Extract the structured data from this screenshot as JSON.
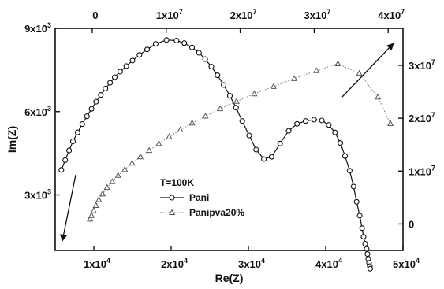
{
  "chart_data": {
    "type": "scatter",
    "annotation": "T=100K",
    "axes": {
      "x_bottom": {
        "label": "Re(Z)",
        "range": [
          5000,
          50000
        ],
        "ticks": [
          10000,
          20000,
          30000,
          40000,
          50000
        ],
        "tick_labels": [
          {
            "base": "1x10",
            "exp": "4"
          },
          {
            "base": "2x10",
            "exp": "4"
          },
          {
            "base": "3x10",
            "exp": "4"
          },
          {
            "base": "4x10",
            "exp": "4"
          },
          {
            "base": "5x10",
            "exp": "4"
          }
        ]
      },
      "y_left": {
        "label": "Im(Z)",
        "range": [
          1000,
          9000
        ],
        "ticks": [
          3000,
          6000,
          9000
        ],
        "tick_labels": [
          {
            "base": "3x10",
            "exp": "3"
          },
          {
            "base": "6x10",
            "exp": "3"
          },
          {
            "base": "9x10",
            "exp": "3"
          }
        ]
      },
      "x_top": {
        "range": [
          -5000000,
          42000000
        ],
        "ticks": [
          0,
          10000000,
          20000000,
          30000000,
          40000000
        ],
        "tick_labels": [
          {
            "base": "0",
            "exp": ""
          },
          {
            "base": "1x10",
            "exp": "7"
          },
          {
            "base": "2x10",
            "exp": "7"
          },
          {
            "base": "3x10",
            "exp": "7"
          },
          {
            "base": "4x10",
            "exp": "7"
          }
        ]
      },
      "y_right": {
        "range": [
          -5000000,
          37000000
        ],
        "ticks": [
          0,
          10000000,
          20000000,
          30000000
        ],
        "tick_labels": [
          {
            "base": "0",
            "exp": ""
          },
          {
            "base": "1x10",
            "exp": "7"
          },
          {
            "base": "2x10",
            "exp": "7"
          },
          {
            "base": "3x10",
            "exp": "7"
          }
        ]
      }
    },
    "series": [
      {
        "name": "Pani",
        "marker": "circle",
        "axes": "bottom-left",
        "x": [
          5800,
          6300,
          6800,
          7300,
          7900,
          8500,
          9100,
          9700,
          10300,
          10900,
          11500,
          12100,
          12700,
          13400,
          14200,
          15000,
          15900,
          16900,
          18000,
          19400,
          20700,
          21700,
          22700,
          23600,
          24400,
          25200,
          26000,
          26800,
          27600,
          28400,
          29200,
          30100,
          31000,
          32000,
          33000,
          34100,
          35200,
          36300,
          37400,
          38500,
          39500,
          40400,
          41200,
          41900,
          42500,
          43100,
          43600,
          44000,
          44400,
          44700,
          44900,
          45100,
          45300,
          45400,
          45500,
          45600,
          45700,
          45750
        ],
        "y": [
          3900,
          4250,
          4600,
          4930,
          5250,
          5550,
          5830,
          6100,
          6360,
          6600,
          6830,
          7040,
          7240,
          7440,
          7640,
          7840,
          8040,
          8240,
          8440,
          8580,
          8560,
          8470,
          8310,
          8120,
          7890,
          7620,
          7310,
          6960,
          6570,
          6140,
          5660,
          5140,
          4630,
          4290,
          4370,
          4850,
          5310,
          5560,
          5660,
          5710,
          5680,
          5520,
          5250,
          4870,
          4400,
          3870,
          3300,
          2750,
          2250,
          1800,
          1490,
          1240,
          1050,
          870,
          700,
          550,
          430,
          340
        ]
      },
      {
        "name": "Panipva20%",
        "marker": "triangle",
        "axes": "top-right",
        "x": [
          -300000,
          -100000,
          200000,
          500000,
          900000,
          1400000,
          2000000,
          2700000,
          3500000,
          4400000,
          5400000,
          6500000,
          7700000,
          9000000,
          10400000,
          11900000,
          13500000,
          15300000,
          17300000,
          19500000,
          21900000,
          24500000,
          27300000,
          30300000,
          33200000,
          36100000,
          38600000,
          40300000
        ],
        "y": [
          900000,
          1600000,
          2500000,
          3500000,
          4600000,
          5700000,
          6900000,
          8000000,
          9200000,
          10300000,
          11500000,
          12700000,
          13900000,
          15200000,
          16500000,
          17800000,
          19100000,
          20400000,
          21800000,
          23200000,
          24600000,
          26000000,
          27500000,
          29000000,
          30300000,
          28500000,
          24000000,
          19000000
        ]
      }
    ],
    "legend": {
      "position": "center-left",
      "title": "T=100K"
    },
    "grid": false
  }
}
